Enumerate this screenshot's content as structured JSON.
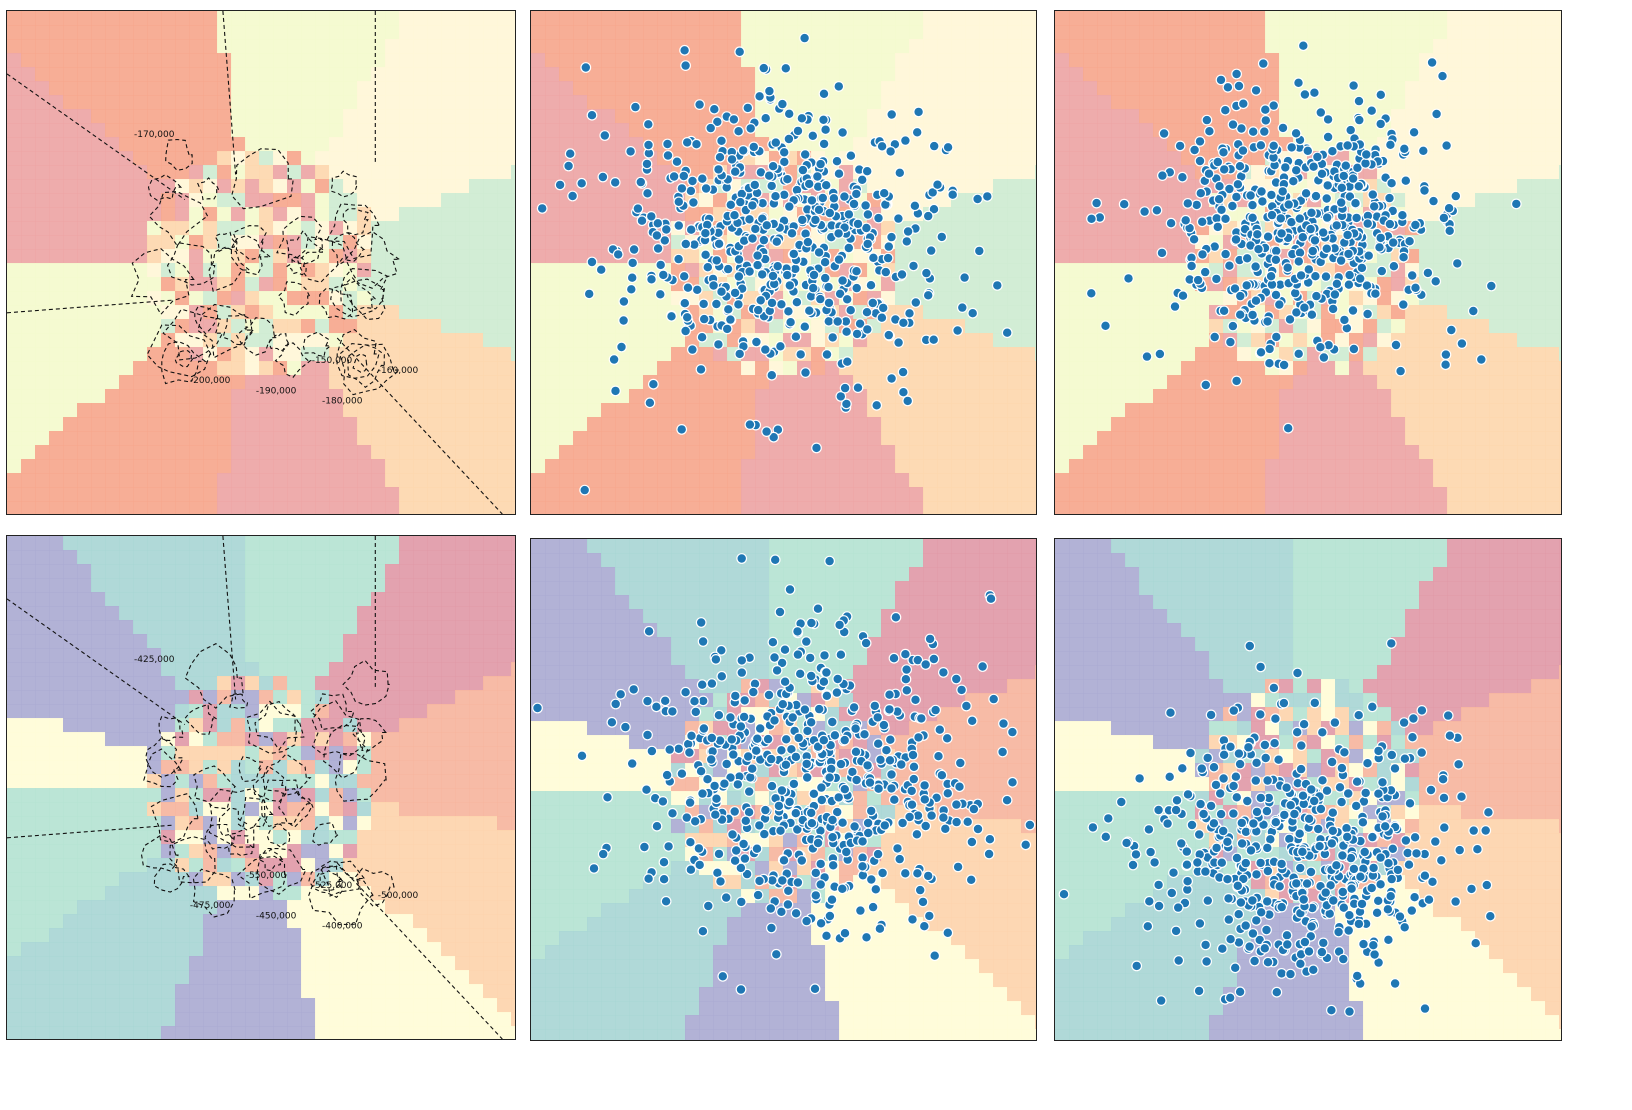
{
  "chart_data": [
    {
      "type": "contour",
      "row": 0,
      "col": 0,
      "xlim": [
        -1,
        1
      ],
      "ylim": [
        -1,
        1
      ],
      "colormap": [
        "#f4f9cc",
        "#f6a58b",
        "#eca3a3",
        "#fdd6ac",
        "#cdebd0",
        "#fff6d6"
      ],
      "contour_labels": [
        "-170,000",
        "-180,000",
        "-190,000",
        "-200,000",
        "-160,000",
        "-150,000"
      ]
    },
    {
      "type": "scatter",
      "row": 0,
      "col": 1,
      "xlim": [
        -1,
        1
      ],
      "ylim": [
        -1,
        1
      ],
      "point_color": "#1f77b4",
      "n_points": 600,
      "center": [
        0.0,
        0.1
      ],
      "spread": [
        0.32,
        0.28
      ]
    },
    {
      "type": "scatter",
      "row": 0,
      "col": 2,
      "xlim": [
        -1,
        1
      ],
      "ylim": [
        -1,
        1
      ],
      "point_color": "#1f77b4",
      "n_points": 550,
      "center": [
        0.0,
        0.15
      ],
      "spread": [
        0.3,
        0.26
      ]
    },
    {
      "type": "contour",
      "row": 1,
      "col": 0,
      "xlim": [
        -1,
        1
      ],
      "ylim": [
        -1,
        1
      ],
      "colormap": [
        "#b4e2d2",
        "#a7d5d4",
        "#aaaad1",
        "#fffcd6",
        "#fdd3ab",
        "#f6b49c",
        "#e098a6"
      ],
      "contour_labels": [
        "-425,000",
        "-400,000",
        "-450,000",
        "-475,000",
        "-500,000",
        "-525,000",
        "-550,000"
      ]
    },
    {
      "type": "scatter",
      "row": 1,
      "col": 1,
      "xlim": [
        -1,
        1
      ],
      "ylim": [
        -1,
        1
      ],
      "point_color": "#1f77b4",
      "n_points": 600,
      "center": [
        0.1,
        0.05
      ],
      "spread": [
        0.34,
        0.3
      ]
    },
    {
      "type": "scatter",
      "row": 1,
      "col": 2,
      "xlim": [
        -1,
        1
      ],
      "ylim": [
        -1,
        1
      ],
      "point_color": "#1f77b4",
      "n_points": 550,
      "center": [
        -0.05,
        -0.25
      ],
      "spread": [
        0.32,
        0.25
      ]
    }
  ]
}
